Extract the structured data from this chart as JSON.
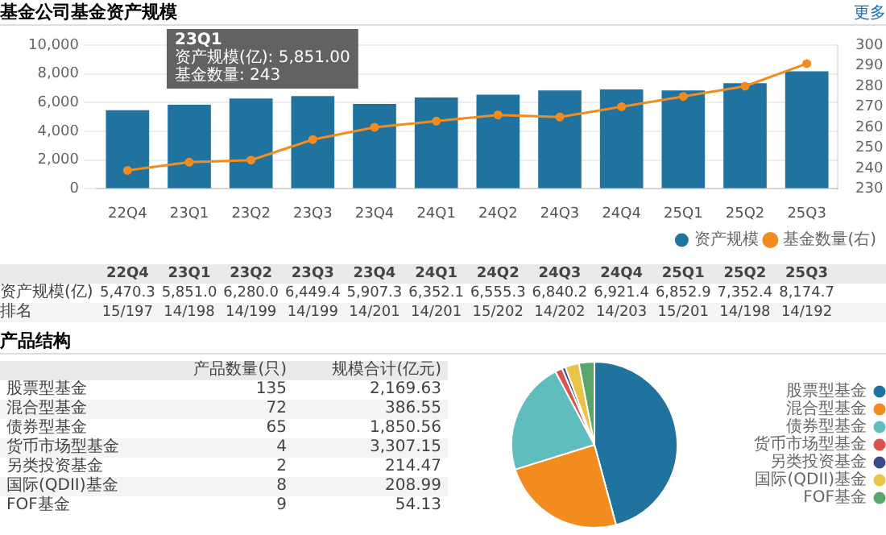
{
  "chart_data": [
    {
      "type": "bar",
      "title": "基金公司基金资产规模",
      "categories": [
        "22Q4",
        "23Q1",
        "23Q2",
        "23Q3",
        "23Q4",
        "24Q1",
        "24Q2",
        "24Q3",
        "24Q4",
        "25Q1",
        "25Q2",
        "25Q3"
      ],
      "series": [
        {
          "name": "资产规模",
          "type": "bar",
          "color": "#21739f",
          "values": [
            5470.3,
            5851.0,
            6280.0,
            6449.4,
            5907.3,
            6352.1,
            6555.3,
            6840.2,
            6921.4,
            6852.9,
            7352.4,
            8174.7
          ],
          "value_labels": [
            "5,470.3",
            "5,851.0",
            "6,280.0",
            "6,449.4",
            "5,907.3",
            "6,352.1",
            "6,555.3",
            "6,840.2",
            "6,921.4",
            "6,852.9",
            "7,352.4",
            "8,174.7"
          ]
        },
        {
          "name": "基金数量(右)",
          "type": "line",
          "axis": "y2",
          "color": "#f28c1e",
          "values": [
            239,
            243,
            244,
            254,
            260,
            263,
            266,
            265,
            270,
            275,
            280,
            291
          ]
        }
      ],
      "ylim": [
        0,
        10000
      ],
      "yticks": [
        0,
        {
          "value": 2000,
          "label": "2,000"
        },
        {
          "value": 4000,
          "label": "4,000"
        },
        {
          "value": 6000,
          "label": "6,000"
        },
        {
          "value": 8000,
          "label": "8,000"
        },
        {
          "value": 10000,
          "label": "10,000"
        }
      ],
      "y2lim": [
        230,
        300
      ],
      "y2ticks": [
        230,
        240,
        250,
        260,
        270,
        280,
        290,
        300
      ],
      "grid": "y",
      "legend": "bottom",
      "marker": "circle",
      "annotations": [
        {
          "text": "23Q1\n资产规模(亿): 5,851.00\n基金数量: 243",
          "x": "23Q1",
          "y": 5851
        },
        "更多",
        "资产规模(亿)",
        "排名",
        "15/197",
        "14/198",
        "14/199",
        "14/199",
        "14/201",
        "14/201",
        "15/202",
        "14/202",
        "14/203",
        "15/201",
        "14/198",
        "14/192"
      ]
    },
    {
      "type": "other",
      "title": "产品结构",
      "annotations": [
        "产品数量(只)",
        "规模合计(亿元)",
        "股票型基金",
        "135",
        "2,169.63",
        "混合型基金",
        "72",
        "386.55",
        "债券型基金",
        "65",
        "1,850.56",
        "货币市场型基金",
        "4",
        "3,307.15",
        "另类投资基金",
        "2",
        "214.47",
        "国际(QDII)基金",
        "8",
        "208.99",
        "FOF基金",
        "9",
        "54.13"
      ]
    },
    {
      "type": "pie",
      "categories": [
        "股票型基金",
        "混合型基金",
        "债券型基金",
        "货币市场型基金",
        "另类投资基金",
        "国际(QDII)基金",
        "FOF基金"
      ],
      "values": [
        45.8,
        24.4,
        22.0,
        1.4,
        0.7,
        2.7,
        3.0
      ],
      "colors": [
        "#21739f",
        "#f28c1e",
        "#5fbdbd",
        "#d9534f",
        "#3b4a8a",
        "#e8c547",
        "#5aa56b"
      ],
      "legend": "right"
    }
  ]
}
